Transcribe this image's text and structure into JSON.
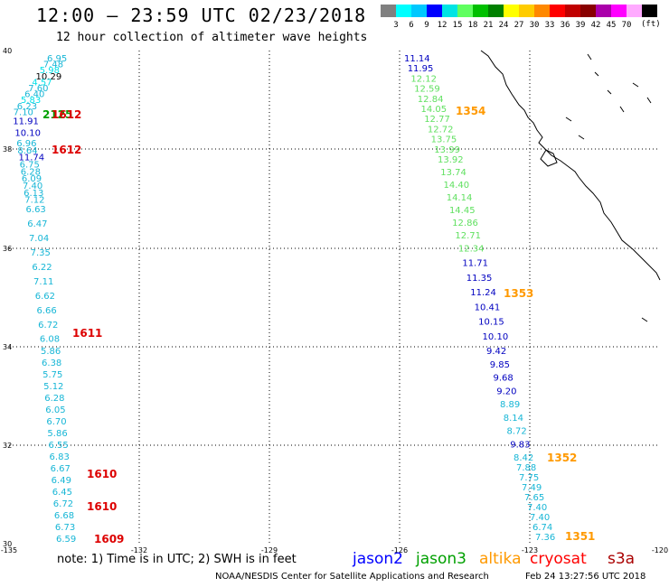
{
  "header": {
    "title": "12:00 – 23:59 UTC 02/23/2018",
    "subtitle": "12 hour collection of altimeter wave heights"
  },
  "legend": {
    "unit": "(ft)",
    "colors": [
      "#808080",
      "#00ffff",
      "#00c8ff",
      "#0000ff",
      "#00e4e4",
      "#60ff60",
      "#00c000",
      "#008000",
      "#ffff00",
      "#ffcc00",
      "#ff8800",
      "#ff0000",
      "#c00000",
      "#880000",
      "#aa00aa",
      "#ff00ff",
      "#ffaaff",
      "#000000"
    ],
    "labels": [
      "3",
      "6",
      "9",
      "12",
      "15",
      "18",
      "21",
      "24",
      "27",
      "30",
      "33",
      "36",
      "39",
      "42",
      "45",
      "70"
    ]
  },
  "axes": {
    "lat_labels": [
      "40",
      "38",
      "36",
      "34",
      "32",
      "30"
    ],
    "lon_labels": [
      "-135",
      "-132",
      "-129",
      "-126",
      "-123",
      "-120"
    ]
  },
  "palette": {
    "low": "#17b6d6",
    "lowmid": "#00e0e8",
    "mid": "#0000c0",
    "green": "#60e060",
    "dkgreen": "#00a000",
    "orange": "#ff9900",
    "red": "#dd0000",
    "black": "#000000"
  },
  "tracks": {
    "west": [
      {
        "v": "6.95",
        "c": "low"
      },
      {
        "v": "7.48",
        "c": "low"
      },
      {
        "v": "5.98",
        "c": "lowmid"
      },
      {
        "v": "10.29",
        "c": "black"
      },
      {
        "v": "4.57",
        "c": "lowmid"
      },
      {
        "v": "7.60",
        "c": "low"
      },
      {
        "v": "6.40",
        "c": "low"
      },
      {
        "v": "5.83",
        "c": "lowmid"
      },
      {
        "v": "6.23",
        "c": "low"
      },
      {
        "v": "7.10",
        "c": "low"
      },
      {
        "v": "11.91",
        "c": "mid"
      },
      {
        "v": "10.10",
        "c": "mid"
      },
      {
        "v": "6.96",
        "c": "low"
      },
      {
        "v": "8.64",
        "c": "low"
      },
      {
        "v": "11.74",
        "c": "mid"
      },
      {
        "v": "6.75",
        "c": "low"
      },
      {
        "v": "6.28",
        "c": "low"
      },
      {
        "v": "6.09",
        "c": "low"
      },
      {
        "v": "7.40",
        "c": "low"
      },
      {
        "v": "6.13",
        "c": "low"
      },
      {
        "v": "7.12",
        "c": "low"
      },
      {
        "v": "6.63",
        "c": "low"
      },
      {
        "v": "6.47",
        "c": "low"
      },
      {
        "v": "7.04",
        "c": "low"
      },
      {
        "v": "7.35",
        "c": "low"
      },
      {
        "v": "6.22",
        "c": "low"
      },
      {
        "v": "7.11",
        "c": "low"
      },
      {
        "v": "6.62",
        "c": "low"
      },
      {
        "v": "6.66",
        "c": "low"
      },
      {
        "v": "6.72",
        "c": "low"
      },
      {
        "v": "6.08",
        "c": "low"
      },
      {
        "v": "5.86",
        "c": "low"
      },
      {
        "v": "6.38",
        "c": "low"
      },
      {
        "v": "5.75",
        "c": "low"
      },
      {
        "v": "5.12",
        "c": "low"
      },
      {
        "v": "6.28",
        "c": "low"
      },
      {
        "v": "6.05",
        "c": "low"
      },
      {
        "v": "6.70",
        "c": "low"
      },
      {
        "v": "5.86",
        "c": "low"
      },
      {
        "v": "6.55",
        "c": "low"
      },
      {
        "v": "6.83",
        "c": "low"
      },
      {
        "v": "6.67",
        "c": "low"
      },
      {
        "v": "6.49",
        "c": "low"
      },
      {
        "v": "6.45",
        "c": "low"
      },
      {
        "v": "6.72",
        "c": "low"
      },
      {
        "v": "6.68",
        "c": "low"
      },
      {
        "v": "6.73",
        "c": "low"
      },
      {
        "v": "6.59",
        "c": "low"
      }
    ],
    "east": [
      {
        "v": "11.14",
        "c": "mid"
      },
      {
        "v": "11.95",
        "c": "mid"
      },
      {
        "v": "12.12",
        "c": "green"
      },
      {
        "v": "12.59",
        "c": "green"
      },
      {
        "v": "12.84",
        "c": "green"
      },
      {
        "v": "14.05",
        "c": "green"
      },
      {
        "v": "12.77",
        "c": "green"
      },
      {
        "v": "12.72",
        "c": "green"
      },
      {
        "v": "13.75",
        "c": "green"
      },
      {
        "v": "13.99",
        "c": "green"
      },
      {
        "v": "13.92",
        "c": "green"
      },
      {
        "v": "13.74",
        "c": "green"
      },
      {
        "v": "14.40",
        "c": "green"
      },
      {
        "v": "14.14",
        "c": "green"
      },
      {
        "v": "14.45",
        "c": "green"
      },
      {
        "v": "12.86",
        "c": "green"
      },
      {
        "v": "12.71",
        "c": "green"
      },
      {
        "v": "12.34",
        "c": "green"
      },
      {
        "v": "11.71",
        "c": "mid"
      },
      {
        "v": "11.35",
        "c": "mid"
      },
      {
        "v": "11.24",
        "c": "mid"
      },
      {
        "v": "10.41",
        "c": "mid"
      },
      {
        "v": "10.15",
        "c": "mid"
      },
      {
        "v": "10.10",
        "c": "mid"
      },
      {
        "v": "9.42",
        "c": "mid"
      },
      {
        "v": "9.85",
        "c": "mid"
      },
      {
        "v": "9.68",
        "c": "mid"
      },
      {
        "v": "9.20",
        "c": "mid"
      },
      {
        "v": "8.89",
        "c": "low"
      },
      {
        "v": "8.14",
        "c": "low"
      },
      {
        "v": "8.72",
        "c": "low"
      },
      {
        "v": "9.83",
        "c": "mid"
      },
      {
        "v": "8.42",
        "c": "low"
      },
      {
        "v": "7.88",
        "c": "low"
      },
      {
        "v": "7.75",
        "c": "low"
      },
      {
        "v": "7.49",
        "c": "low"
      },
      {
        "v": "7.65",
        "c": "low"
      },
      {
        "v": "7.40",
        "c": "low"
      },
      {
        "v": "7.40",
        "c": "low"
      },
      {
        "v": "6.74",
        "c": "low"
      },
      {
        "v": "7.36",
        "c": "low"
      }
    ]
  },
  "overlap_labels": [
    {
      "t": "2125",
      "c": "dkgreen"
    },
    {
      "t": "1612",
      "c": "red"
    }
  ],
  "pass_times": [
    {
      "t": "1612",
      "c": "red"
    },
    {
      "t": "1611",
      "c": "red"
    },
    {
      "t": "1610",
      "c": "red"
    },
    {
      "t": "1610",
      "c": "red"
    },
    {
      "t": "1609",
      "c": "red"
    },
    {
      "t": "1354",
      "c": "orange"
    },
    {
      "t": "1353",
      "c": "orange"
    },
    {
      "t": "1352",
      "c": "orange"
    },
    {
      "t": "1351",
      "c": "orange"
    }
  ],
  "footer": {
    "note": "note:  1) Time is in UTC;  2) SWH is in feet",
    "satellites": [
      {
        "name": "jason2",
        "color": "#0000ff"
      },
      {
        "name": "jason3",
        "color": "#00a000"
      },
      {
        "name": "altika",
        "color": "#ff9900"
      },
      {
        "name": "cryosat",
        "color": "#ff0000"
      },
      {
        "name": "s3a",
        "color": "#aa0000"
      }
    ],
    "credit": "NOAA/NESDIS Center for Satellite Applications and Research",
    "timestamp": "Feb 24 13:27:56 UTC 2018"
  }
}
